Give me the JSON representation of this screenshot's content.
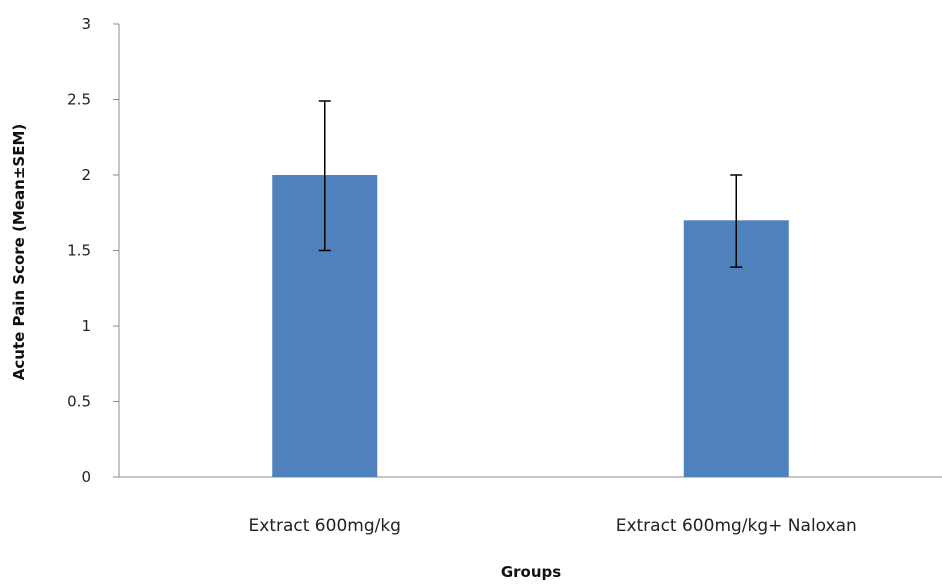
{
  "chart_data": {
    "type": "bar",
    "title": "",
    "xlabel": "Groups",
    "ylabel": "Acute Pain Score (Mean±SEM)",
    "ylim": [
      0,
      3
    ],
    "yticks": [
      0,
      0.5,
      1,
      1.5,
      2,
      2.5,
      3
    ],
    "ytick_labels": [
      "0",
      "0.5",
      "1",
      "1.5",
      "2",
      "2.5",
      "3"
    ],
    "categories": [
      "Extract 600mg/kg",
      "Extract 600mg/kg+ Naloxan"
    ],
    "values": [
      2.0,
      1.7
    ],
    "error_low": [
      1.5,
      1.39
    ],
    "error_high": [
      2.49,
      2.0
    ],
    "grid": false,
    "legend": "none",
    "bar_color": "#4F81BD",
    "axis_color": "#8C8C8C",
    "error_bar_color": "#000000"
  }
}
